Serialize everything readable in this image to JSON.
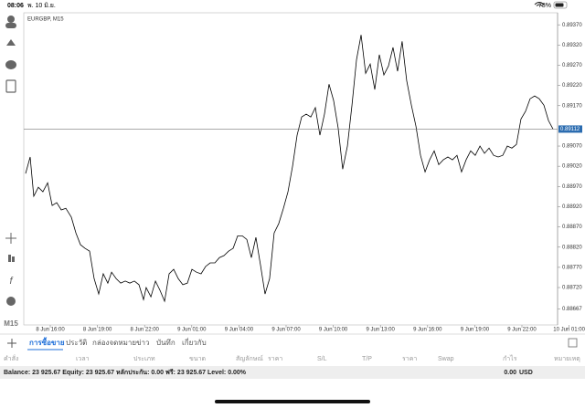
{
  "status_bar": {
    "time": "08:06",
    "date": "พ. 10 มิ.ย.",
    "battery": "78%"
  },
  "toolbar": {
    "timeframe": "M15"
  },
  "chart_data": {
    "type": "line",
    "title": "EURGBP, M15",
    "x": [
      -1.57,
      -1.28,
      -1.05,
      -0.76,
      -0.47,
      -0.17,
      0.12,
      0.41,
      0.7,
      0.99,
      1.34,
      1.63,
      1.92,
      2.21,
      2.5,
      2.79,
      3.08,
      3.37,
      3.66,
      3.9,
      4.19,
      4.48,
      4.77,
      5.06,
      5.35,
      5.64,
      5.93,
      6.1,
      6.4,
      6.69,
      6.98,
      7.27,
      7.56,
      7.85,
      8.14,
      8.43,
      8.72,
      9.01,
      9.3,
      9.59,
      9.88,
      10.17,
      10.47,
      10.76,
      11.05,
      11.34,
      11.63,
      11.92,
      12.21,
      12.5,
      12.79,
      13.08,
      13.37,
      13.66,
      13.95,
      14.24,
      14.53,
      14.83,
      15.12,
      15.41,
      15.7,
      15.99,
      16.28,
      16.57,
      16.86,
      17.15,
      17.44,
      17.73,
      18.02,
      18.31,
      18.6,
      18.9,
      19.19,
      19.48,
      19.77,
      20.06,
      20.35,
      20.64,
      20.93,
      21.22,
      21.51,
      21.8,
      22.09,
      22.38,
      22.67,
      22.97,
      23.26,
      23.55,
      23.84,
      24.13,
      24.42,
      24.71,
      25.0,
      25.29,
      25.58,
      25.87,
      26.16,
      26.45,
      26.74,
      27.03,
      27.33,
      27.62,
      27.91,
      28.2,
      28.49,
      28.78,
      29.07,
      29.36,
      29.65,
      29.94,
      30.23,
      30.52,
      30.81,
      31.1,
      31.4,
      31.69,
      31.98
    ],
    "series": [
      {
        "name": "EURGBP",
        "color": "#000000",
        "values": [
          0.89002,
          0.89043,
          0.88946,
          0.88968,
          0.88957,
          0.88979,
          0.88923,
          0.8893,
          0.88912,
          0.88916,
          0.88894,
          0.88855,
          0.88826,
          0.88817,
          0.8881,
          0.88742,
          0.88704,
          0.88754,
          0.88731,
          0.88758,
          0.88742,
          0.88731,
          0.88736,
          0.88731,
          0.88736,
          0.88727,
          0.8869,
          0.8872,
          0.88697,
          0.88736,
          0.88713,
          0.88686,
          0.88754,
          0.88765,
          0.88742,
          0.88727,
          0.88731,
          0.88765,
          0.88758,
          0.88754,
          0.88772,
          0.88781,
          0.88781,
          0.88794,
          0.88799,
          0.8881,
          0.88817,
          0.88848,
          0.88848,
          0.88839,
          0.88794,
          0.88844,
          0.88776,
          0.88704,
          0.88742,
          0.88855,
          0.88878,
          0.88916,
          0.88957,
          0.8902,
          0.89097,
          0.89142,
          0.89149,
          0.89142,
          0.89165,
          0.89097,
          0.89149,
          0.89223,
          0.89183,
          0.89115,
          0.89013,
          0.8907,
          0.89171,
          0.89284,
          0.89345,
          0.8925,
          0.89273,
          0.8921,
          0.89296,
          0.89246,
          0.89268,
          0.89314,
          0.89255,
          0.89329,
          0.89232,
          0.89171,
          0.89119,
          0.89047,
          0.89006,
          0.89036,
          0.89058,
          0.89024,
          0.89036,
          0.89043,
          0.89036,
          0.89047,
          0.89006,
          0.89036,
          0.89058,
          0.89047,
          0.8907,
          0.89052,
          0.89065,
          0.89047,
          0.89043,
          0.89047,
          0.8907,
          0.89065,
          0.89074,
          0.89137,
          0.89156,
          0.89187,
          0.89194,
          0.89187,
          0.89171,
          0.89133,
          0.89112
        ]
      }
    ],
    "current_price": 0.89112,
    "xlim": [
      -1.57,
      32.21
    ],
    "xticks": [
      {
        "value": 0,
        "label": "8 Jun 16:00"
      },
      {
        "value": 3,
        "label": "8 Jun 19:00"
      },
      {
        "value": 6,
        "label": "8 Jun 22:00"
      },
      {
        "value": 9,
        "label": "9 Jun 01:00"
      },
      {
        "value": 12,
        "label": "9 Jun 04:00"
      },
      {
        "value": 15,
        "label": "9 Jun 07:00"
      },
      {
        "value": 18,
        "label": "9 Jun 10:00"
      },
      {
        "value": 21,
        "label": "9 Jun 13:00"
      },
      {
        "value": 24,
        "label": "9 Jun 16:00"
      },
      {
        "value": 27,
        "label": "9 Jun 19:00"
      },
      {
        "value": 30,
        "label": "9 Jun 22:00"
      },
      {
        "value": 33,
        "label": "10 Jun 01:00"
      }
    ],
    "ylim": [
      0.88641,
      0.89393
    ],
    "yticks": [
      0.88667,
      {
        "value": 0.8872,
        "label": "0.88720"
      },
      {
        "value": 0.8877,
        "label": "0.88770"
      },
      {
        "value": 0.8882,
        "label": "0.88820"
      },
      {
        "value": 0.8887,
        "label": "0.88870"
      },
      {
        "value": 0.8892,
        "label": "0.88920"
      },
      {
        "value": 0.8897,
        "label": "0.88970"
      },
      {
        "value": 0.8902,
        "label": "0.89020"
      },
      {
        "value": 0.8907,
        "label": "0.89070"
      },
      {
        "value": 0.8917,
        "label": "0.89170"
      },
      {
        "value": 0.8922,
        "label": "0.89220"
      },
      {
        "value": 0.8927,
        "label": "0.89270"
      },
      {
        "value": 0.8932,
        "label": "0.89320"
      },
      {
        "value": 0.8937,
        "label": "0.89370"
      }
    ],
    "grid": false
  },
  "tabs": [
    "การซื้อขาย",
    "ประวัติ",
    "กล่องจดหมาย",
    "ข่าว",
    "บันทึก",
    "เกี่ยวกับ"
  ],
  "table": {
    "columns": [
      "คำสั่ง",
      "เวลา",
      "ประเภท",
      "ขนาด",
      "สัญลักษณ์",
      "ราคา",
      "S/L",
      "T/P",
      "ราคา",
      "Swap",
      "กำไร",
      "หมายเหตุ"
    ]
  },
  "account": {
    "summary": "Balance: 23 925.67 Equity: 23 925.67 หลักประกัน: 0.00 ฟรี: 23 925.67 Level: 0.00%",
    "profit": "0.00",
    "currency": "USD"
  }
}
